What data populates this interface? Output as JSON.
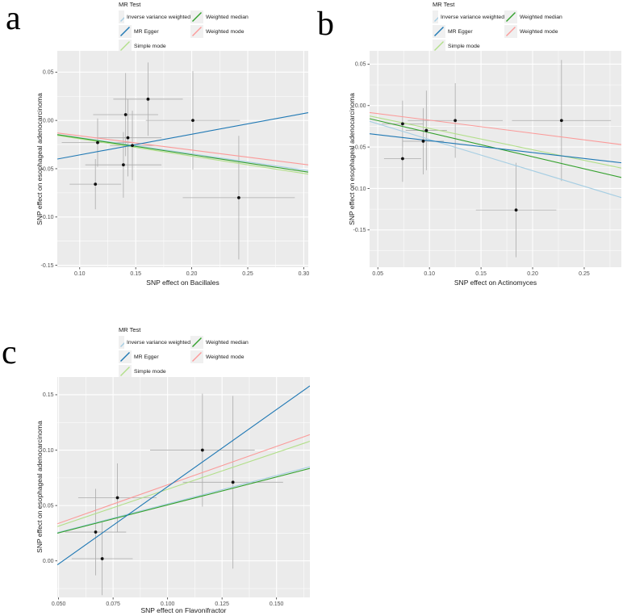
{
  "styles": {
    "panel_bg": "#EBEBEB",
    "grid": "#FFFFFF",
    "point": "#111111",
    "errbar": "#ABABAB",
    "tick": "#333333",
    "tick_label": "#4D4D4D",
    "axis_title": "#1A1A1A"
  },
  "legend": {
    "title": "MR Test",
    "columns": [
      [
        {
          "label": "Inverse variance weighted",
          "color": "#A6CEE3"
        },
        {
          "label": "MR Egger",
          "color": "#1F78B4"
        },
        {
          "label": "Simple mode",
          "color": "#B2DF8A"
        }
      ],
      [
        {
          "label": "Weighted median",
          "color": "#33A02C"
        },
        {
          "label": "Weighted mode",
          "color": "#FB9A99"
        }
      ]
    ]
  },
  "chart_data": [
    {
      "type": "scatter",
      "panel_label": "a",
      "xlabel": "SNP effect on Bacillales",
      "ylabel": "SNP effect on esophageal adenocarcinoma",
      "xlim": [
        0.08,
        0.304
      ],
      "ylim": [
        -0.152,
        0.072
      ],
      "x_ticks": [
        0.1,
        0.15,
        0.2,
        0.25,
        0.3
      ],
      "x_tick_labels": [
        "0.10",
        "0.15",
        "0.20",
        "0.25",
        "0.30"
      ],
      "y_ticks": [
        0.05,
        0.0,
        -0.05,
        -0.1,
        -0.15
      ],
      "y_tick_labels": [
        "0.05",
        "0.00",
        "-0.05",
        "-0.10",
        "-0.15"
      ],
      "points": [
        {
          "x": 0.161,
          "y": 0.022,
          "xerr": 0.031,
          "yerr": 0.038
        },
        {
          "x": 0.141,
          "y": 0.006,
          "xerr": 0.029,
          "yerr": 0.043
        },
        {
          "x": 0.201,
          "y": 0.0,
          "xerr": 0.042,
          "yerr": 0.051
        },
        {
          "x": 0.143,
          "y": -0.018,
          "xerr": 0.03,
          "yerr": 0.04
        },
        {
          "x": 0.116,
          "y": -0.023,
          "xerr": 0.032,
          "yerr": 0.025
        },
        {
          "x": 0.147,
          "y": -0.026,
          "xerr": 0.02,
          "yerr": 0.036
        },
        {
          "x": 0.139,
          "y": -0.046,
          "xerr": 0.034,
          "yerr": 0.034
        },
        {
          "x": 0.114,
          "y": -0.066,
          "xerr": 0.023,
          "yerr": 0.026
        },
        {
          "x": 0.242,
          "y": -0.08,
          "xerr": 0.05,
          "yerr": 0.064
        }
      ],
      "lines": [
        {
          "name": "Inverse variance weighted",
          "y": [
            -0.0145,
            -0.052
          ]
        },
        {
          "name": "Simple mode",
          "y": [
            -0.0155,
            -0.0556
          ]
        },
        {
          "name": "Weighted median",
          "y": [
            -0.0148,
            -0.0535
          ]
        },
        {
          "name": "Weighted mode",
          "y": [
            -0.013,
            -0.046
          ]
        },
        {
          "name": "MR Egger",
          "y": [
            -0.04,
            0.008
          ]
        }
      ]
    },
    {
      "type": "scatter",
      "panel_label": "b",
      "xlabel": "SNP effect on Actinomyces",
      "ylabel": "SNP effect on esophageal adenocarcinoma",
      "xlim": [
        0.042,
        0.286
      ],
      "ylim": [
        -0.195,
        0.066
      ],
      "x_ticks": [
        0.05,
        0.1,
        0.15,
        0.2,
        0.25
      ],
      "x_tick_labels": [
        "0.05",
        "0.10",
        "0.15",
        "0.20",
        "0.25"
      ],
      "y_ticks": [
        0.05,
        0.0,
        -0.05,
        -0.1,
        -0.15
      ],
      "y_tick_labels": [
        "0.05",
        "0.00",
        "-0.05",
        "-0.10",
        "-0.15"
      ],
      "points": [
        {
          "x": 0.074,
          "y": -0.022,
          "xerr": 0.02,
          "yerr": 0.028
        },
        {
          "x": 0.097,
          "y": -0.03,
          "xerr": 0.02,
          "yerr": 0.048
        },
        {
          "x": 0.094,
          "y": -0.043,
          "xerr": 0.02,
          "yerr": 0.04
        },
        {
          "x": 0.074,
          "y": -0.064,
          "xerr": 0.018,
          "yerr": 0.028
        },
        {
          "x": 0.125,
          "y": -0.018,
          "xerr": 0.046,
          "yerr": 0.045
        },
        {
          "x": 0.228,
          "y": -0.018,
          "xerr": 0.048,
          "yerr": 0.073
        },
        {
          "x": 0.184,
          "y": -0.126,
          "xerr": 0.039,
          "yerr": 0.057
        }
      ],
      "lines": [
        {
          "name": "Inverse variance weighted",
          "y": [
            -0.019,
            -0.111
          ]
        },
        {
          "name": "Simple mode",
          "y": [
            -0.0126,
            -0.0754
          ]
        },
        {
          "name": "Weighted median",
          "y": [
            -0.0158,
            -0.0867
          ]
        },
        {
          "name": "Weighted mode",
          "y": [
            -0.0084,
            -0.047
          ]
        },
        {
          "name": "MR Egger",
          "y": [
            -0.034,
            -0.069
          ]
        }
      ]
    },
    {
      "type": "scatter",
      "panel_label": "c",
      "xlabel": "SNP effect on Flavonifractor",
      "ylabel": "SNP effect on esophageal adenocarcinoma",
      "xlim": [
        0.0494,
        0.1653
      ],
      "ylim": [
        -0.033,
        0.166
      ],
      "x_ticks": [
        0.05,
        0.075,
        0.1,
        0.125,
        0.15
      ],
      "x_tick_labels": [
        "0.050",
        "0.075",
        "0.100",
        "0.125",
        "0.150"
      ],
      "y_ticks": [
        0.15,
        0.1,
        0.05,
        0.0
      ],
      "y_tick_labels": [
        "0.15",
        "0.10",
        "0.05",
        "0.00"
      ],
      "points": [
        {
          "x": 0.116,
          "y": 0.1,
          "xerr": 0.024,
          "yerr": 0.051
        },
        {
          "x": 0.13,
          "y": 0.071,
          "xerr": 0.023,
          "yerr": 0.078
        },
        {
          "x": 0.077,
          "y": 0.057,
          "xerr": 0.018,
          "yerr": 0.031
        },
        {
          "x": 0.067,
          "y": 0.026,
          "xerr": 0.014,
          "yerr": 0.039
        },
        {
          "x": 0.07,
          "y": 0.002,
          "xerr": 0.014,
          "yerr": 0.033
        }
      ],
      "lines": [
        {
          "name": "Inverse variance weighted",
          "y": [
            0.0255,
            0.085
          ]
        },
        {
          "name": "Simple mode",
          "y": [
            0.031,
            0.108
          ]
        },
        {
          "name": "Weighted median",
          "y": [
            0.025,
            0.0835
          ]
        },
        {
          "name": "Weighted mode",
          "y": [
            0.0335,
            0.114
          ]
        },
        {
          "name": "MR Egger",
          "y": [
            -0.0036,
            0.158
          ]
        }
      ]
    }
  ]
}
